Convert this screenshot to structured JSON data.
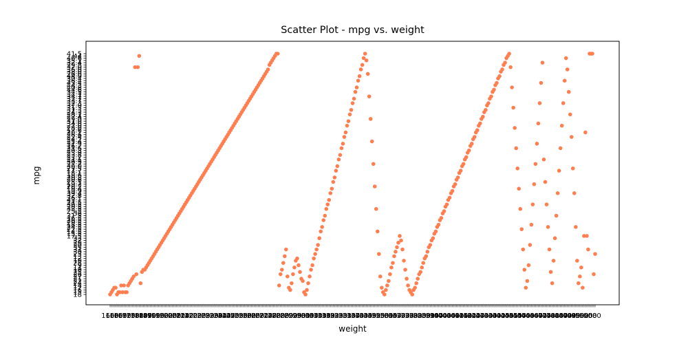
{
  "chart_data": {
    "type": "scatter",
    "title": "Scatter Plot - mpg vs. weight",
    "xlabel": "weight",
    "ylabel": "mpg",
    "marker_color": "#ff7f50",
    "grid": false,
    "x_axis": {
      "kind": "categorical",
      "category_count": 351
    },
    "y_axis": {
      "kind": "categorical",
      "categories": [
        "18",
        "15",
        "16",
        "17",
        "14",
        "24",
        "22",
        "21",
        "27",
        "26",
        "25",
        "10",
        "11",
        "9",
        "28",
        "19",
        "12",
        "13",
        "23",
        "30",
        "31",
        "35",
        "20",
        "29",
        "32",
        "33",
        "17.5",
        "15.5",
        "14.5",
        "22.5",
        "24.5",
        "18.5",
        "29.5",
        "26.5",
        "16.5",
        "31.5",
        "36",
        "25.5",
        "33.5",
        "20.5",
        "30.5",
        "21.5",
        "43.1",
        "36.1",
        "32.8",
        "39.4",
        "19.9",
        "19.4",
        "20.2",
        "19.2",
        "25.1",
        "20.6",
        "20.8",
        "18.6",
        "18.1",
        "17.7",
        "27.5",
        "30.0",
        "27.2",
        "30.9",
        "21.1",
        "23.2",
        "23.8",
        "23.9",
        "20.3",
        "21.6",
        "16.2",
        "31.9",
        "25.4",
        "24.2",
        "22.4",
        "26.6",
        "20.1",
        "17.6",
        "28.0",
        "27.0",
        "34.0",
        "31.0",
        "29.0",
        "27.4",
        "28.1",
        "24.3",
        "37.3",
        "31.3",
        "37.0",
        "32.3",
        "33.7",
        "32.7",
        "34.7",
        "34.1",
        "34.5",
        "44.6",
        "40.8",
        "44.3",
        "43.4",
        "36.4",
        "30.4",
        "44.0",
        "26.0",
        "38.0",
        "36.0",
        "32.0",
        "29.8",
        "32.4",
        "35.1",
        "46.6",
        "44",
        "41.5"
      ]
    },
    "points": [
      [
        0,
        0
      ],
      [
        1,
        1
      ],
      [
        2,
        2
      ],
      [
        3,
        3
      ],
      [
        4,
        3
      ],
      [
        5,
        0
      ],
      [
        6,
        1
      ],
      [
        7,
        1
      ],
      [
        8,
        4
      ],
      [
        9,
        1
      ],
      [
        10,
        4
      ],
      [
        11,
        1
      ],
      [
        12,
        1
      ],
      [
        13,
        4
      ],
      [
        14,
        5
      ],
      [
        15,
        6
      ],
      [
        16,
        7
      ],
      [
        17,
        8
      ],
      [
        18,
        101
      ],
      [
        19,
        9
      ],
      [
        20,
        101
      ],
      [
        21,
        106
      ],
      [
        22,
        5
      ],
      [
        23,
        10
      ],
      [
        24,
        11
      ],
      [
        25,
        11
      ],
      [
        26,
        12
      ],
      [
        27,
        13
      ],
      [
        28,
        14
      ],
      [
        29,
        15
      ],
      [
        30,
        16
      ],
      [
        31,
        17
      ],
      [
        32,
        18
      ],
      [
        33,
        19
      ],
      [
        34,
        20
      ],
      [
        35,
        21
      ],
      [
        36,
        22
      ],
      [
        37,
        23
      ],
      [
        38,
        24
      ],
      [
        39,
        25
      ],
      [
        40,
        26
      ],
      [
        41,
        27
      ],
      [
        42,
        28
      ],
      [
        43,
        29
      ],
      [
        44,
        30
      ],
      [
        45,
        31
      ],
      [
        46,
        32
      ],
      [
        47,
        33
      ],
      [
        48,
        34
      ],
      [
        49,
        35
      ],
      [
        50,
        36
      ],
      [
        51,
        37
      ],
      [
        52,
        38
      ],
      [
        53,
        39
      ],
      [
        54,
        40
      ],
      [
        55,
        41
      ],
      [
        56,
        42
      ],
      [
        57,
        43
      ],
      [
        58,
        44
      ],
      [
        59,
        45
      ],
      [
        60,
        46
      ],
      [
        61,
        47
      ],
      [
        62,
        48
      ],
      [
        63,
        49
      ],
      [
        64,
        50
      ],
      [
        65,
        51
      ],
      [
        66,
        52
      ],
      [
        67,
        53
      ],
      [
        68,
        54
      ],
      [
        69,
        55
      ],
      [
        70,
        56
      ],
      [
        71,
        57
      ],
      [
        72,
        58
      ],
      [
        73,
        59
      ],
      [
        74,
        60
      ],
      [
        75,
        61
      ],
      [
        76,
        62
      ],
      [
        77,
        63
      ],
      [
        78,
        64
      ],
      [
        79,
        65
      ],
      [
        80,
        66
      ],
      [
        81,
        67
      ],
      [
        82,
        68
      ],
      [
        83,
        69
      ],
      [
        84,
        70
      ],
      [
        85,
        71
      ],
      [
        86,
        72
      ],
      [
        87,
        73
      ],
      [
        88,
        74
      ],
      [
        89,
        75
      ],
      [
        90,
        76
      ],
      [
        91,
        77
      ],
      [
        92,
        78
      ],
      [
        93,
        79
      ],
      [
        94,
        80
      ],
      [
        95,
        81
      ],
      [
        96,
        82
      ],
      [
        97,
        83
      ],
      [
        98,
        84
      ],
      [
        99,
        85
      ],
      [
        100,
        86
      ],
      [
        101,
        87
      ],
      [
        102,
        88
      ],
      [
        103,
        89
      ],
      [
        104,
        90
      ],
      [
        105,
        91
      ],
      [
        106,
        92
      ],
      [
        107,
        93
      ],
      [
        108,
        94
      ],
      [
        109,
        95
      ],
      [
        110,
        96
      ],
      [
        111,
        97
      ],
      [
        112,
        98
      ],
      [
        113,
        99
      ],
      [
        114,
        100
      ],
      [
        115,
        102
      ],
      [
        116,
        103
      ],
      [
        117,
        104
      ],
      [
        118,
        105
      ],
      [
        119,
        106
      ],
      [
        120,
        107
      ],
      [
        121,
        107
      ],
      [
        122,
        4
      ],
      [
        123,
        9
      ],
      [
        124,
        11
      ],
      [
        125,
        14
      ],
      [
        126,
        17
      ],
      [
        127,
        20
      ],
      [
        128,
        8
      ],
      [
        129,
        3
      ],
      [
        130,
        2
      ],
      [
        131,
        5
      ],
      [
        132,
        9
      ],
      [
        133,
        12
      ],
      [
        134,
        15
      ],
      [
        135,
        16
      ],
      [
        136,
        13
      ],
      [
        137,
        10
      ],
      [
        138,
        7
      ],
      [
        139,
        6
      ],
      [
        140,
        1
      ],
      [
        141,
        0
      ],
      [
        142,
        2
      ],
      [
        143,
        5
      ],
      [
        144,
        8
      ],
      [
        145,
        11
      ],
      [
        146,
        13
      ],
      [
        147,
        16
      ],
      [
        148,
        18
      ],
      [
        149,
        20
      ],
      [
        150,
        22
      ],
      [
        151,
        25
      ],
      [
        152,
        28
      ],
      [
        153,
        30
      ],
      [
        154,
        33
      ],
      [
        155,
        35
      ],
      [
        156,
        38
      ],
      [
        157,
        40
      ],
      [
        158,
        42
      ],
      [
        159,
        45
      ],
      [
        160,
        47
      ],
      [
        161,
        50
      ],
      [
        162,
        52
      ],
      [
        163,
        55
      ],
      [
        164,
        57
      ],
      [
        165,
        60
      ],
      [
        166,
        62
      ],
      [
        167,
        65
      ],
      [
        168,
        67
      ],
      [
        169,
        70
      ],
      [
        170,
        72
      ],
      [
        171,
        75
      ],
      [
        172,
        77
      ],
      [
        173,
        80
      ],
      [
        174,
        82
      ],
      [
        175,
        85
      ],
      [
        176,
        87
      ],
      [
        177,
        90
      ],
      [
        178,
        92
      ],
      [
        179,
        95
      ],
      [
        180,
        97
      ],
      [
        181,
        100
      ],
      [
        182,
        102
      ],
      [
        183,
        105
      ],
      [
        184,
        107
      ],
      [
        185,
        104
      ],
      [
        186,
        98
      ],
      [
        187,
        88
      ],
      [
        188,
        78
      ],
      [
        189,
        68
      ],
      [
        190,
        58
      ],
      [
        191,
        48
      ],
      [
        192,
        38
      ],
      [
        193,
        28
      ],
      [
        194,
        18
      ],
      [
        195,
        8
      ],
      [
        196,
        3
      ],
      [
        197,
        1
      ],
      [
        198,
        0
      ],
      [
        199,
        2
      ],
      [
        200,
        4
      ],
      [
        201,
        6
      ],
      [
        202,
        9
      ],
      [
        203,
        12
      ],
      [
        204,
        14
      ],
      [
        205,
        17
      ],
      [
        206,
        19
      ],
      [
        207,
        21
      ],
      [
        208,
        23
      ],
      [
        209,
        26
      ],
      [
        210,
        24
      ],
      [
        211,
        20
      ],
      [
        212,
        15
      ],
      [
        213,
        11
      ],
      [
        214,
        7
      ],
      [
        215,
        4
      ],
      [
        216,
        2
      ],
      [
        217,
        1
      ],
      [
        218,
        0
      ],
      [
        219,
        2
      ],
      [
        220,
        3
      ],
      [
        221,
        5
      ],
      [
        222,
        7
      ],
      [
        223,
        9
      ],
      [
        224,
        10
      ],
      [
        225,
        12
      ],
      [
        226,
        14
      ],
      [
        227,
        16
      ],
      [
        228,
        17
      ],
      [
        229,
        19
      ],
      [
        230,
        21
      ],
      [
        231,
        22
      ],
      [
        232,
        24
      ],
      [
        233,
        25
      ],
      [
        234,
        27
      ],
      [
        235,
        28
      ],
      [
        236,
        30
      ],
      [
        237,
        31
      ],
      [
        238,
        33
      ],
      [
        239,
        34
      ],
      [
        240,
        36
      ],
      [
        241,
        37
      ],
      [
        242,
        39
      ],
      [
        243,
        40
      ],
      [
        244,
        42
      ],
      [
        245,
        43
      ],
      [
        246,
        45
      ],
      [
        247,
        46
      ],
      [
        248,
        48
      ],
      [
        249,
        49
      ],
      [
        250,
        51
      ],
      [
        251,
        52
      ],
      [
        252,
        54
      ],
      [
        253,
        55
      ],
      [
        254,
        57
      ],
      [
        255,
        58
      ],
      [
        256,
        60
      ],
      [
        257,
        61
      ],
      [
        258,
        63
      ],
      [
        259,
        64
      ],
      [
        260,
        66
      ],
      [
        261,
        67
      ],
      [
        262,
        69
      ],
      [
        263,
        70
      ],
      [
        264,
        72
      ],
      [
        265,
        73
      ],
      [
        266,
        75
      ],
      [
        267,
        76
      ],
      [
        268,
        78
      ],
      [
        269,
        79
      ],
      [
        270,
        81
      ],
      [
        271,
        82
      ],
      [
        272,
        84
      ],
      [
        273,
        85
      ],
      [
        274,
        87
      ],
      [
        275,
        88
      ],
      [
        276,
        90
      ],
      [
        277,
        91
      ],
      [
        278,
        93
      ],
      [
        279,
        94
      ],
      [
        280,
        96
      ],
      [
        281,
        97
      ],
      [
        282,
        99
      ],
      [
        283,
        100
      ],
      [
        284,
        102
      ],
      [
        285,
        103
      ],
      [
        286,
        105
      ],
      [
        287,
        106
      ],
      [
        288,
        107
      ],
      [
        289,
        101
      ],
      [
        290,
        92
      ],
      [
        291,
        83
      ],
      [
        292,
        74
      ],
      [
        293,
        65
      ],
      [
        294,
        56
      ],
      [
        295,
        47
      ],
      [
        296,
        38
      ],
      [
        297,
        29
      ],
      [
        298,
        20
      ],
      [
        299,
        11
      ],
      [
        300,
        3
      ],
      [
        301,
        6
      ],
      [
        302,
        13
      ],
      [
        303,
        22
      ],
      [
        304,
        31
      ],
      [
        305,
        40
      ],
      [
        306,
        49
      ],
      [
        307,
        58
      ],
      [
        308,
        67
      ],
      [
        309,
        76
      ],
      [
        310,
        85
      ],
      [
        311,
        94
      ],
      [
        312,
        103
      ],
      [
        313,
        60
      ],
      [
        314,
        50
      ],
      [
        315,
        40
      ],
      [
        316,
        30
      ],
      [
        317,
        20
      ],
      [
        318,
        10
      ],
      [
        319,
        5
      ],
      [
        320,
        15
      ],
      [
        321,
        25
      ],
      [
        322,
        35
      ],
      [
        323,
        45
      ],
      [
        324,
        55
      ],
      [
        325,
        65
      ],
      [
        326,
        75
      ],
      [
        327,
        85
      ],
      [
        328,
        95
      ],
      [
        329,
        105
      ],
      [
        330,
        100
      ],
      [
        331,
        90
      ],
      [
        332,
        80
      ],
      [
        333,
        70
      ],
      [
        334,
        56
      ],
      [
        335,
        45
      ],
      [
        336,
        30
      ],
      [
        337,
        15
      ],
      [
        338,
        5
      ],
      [
        339,
        8
      ],
      [
        340,
        12
      ],
      [
        341,
        3
      ],
      [
        342,
        26
      ],
      [
        343,
        72
      ],
      [
        344,
        26
      ],
      [
        345,
        20
      ],
      [
        346,
        107
      ],
      [
        347,
        107
      ],
      [
        348,
        107
      ],
      [
        349,
        9
      ],
      [
        350,
        18
      ]
    ]
  }
}
